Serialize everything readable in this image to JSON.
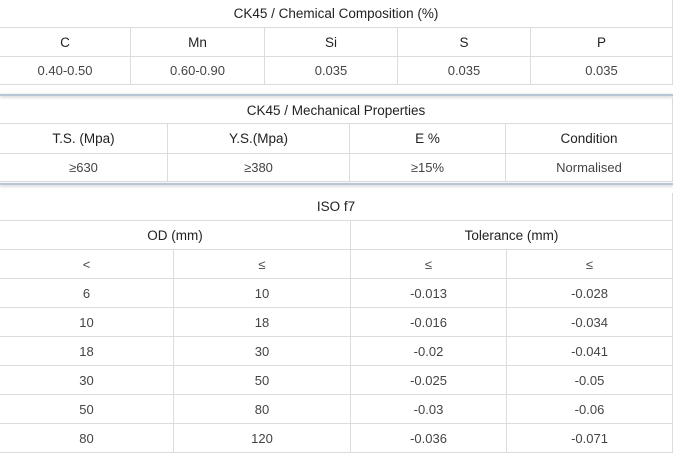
{
  "chemical": {
    "title": "CK45 / Chemical Composition (%)",
    "headers": [
      "C",
      "Mn",
      "Si",
      "S",
      "P"
    ],
    "values": [
      "0.40-0.50",
      "0.60-0.90",
      "0.035",
      "0.035",
      "0.035"
    ]
  },
  "mechanical": {
    "title": "CK45 / Mechanical Properties",
    "headers": [
      "T.S. (Mpa)",
      "Y.S.(Mpa)",
      "E %",
      "Condition"
    ],
    "values": [
      "≥630",
      "≥380",
      "≥15%",
      "Normalised"
    ]
  },
  "tolerance": {
    "title": "ISO f7",
    "groups": [
      "OD (mm)",
      "Tolerance (mm)"
    ],
    "symbols": [
      "<",
      "≤",
      "≤",
      "≤"
    ],
    "rows": [
      [
        "6",
        "10",
        "-0.013",
        "-0.028"
      ],
      [
        "10",
        "18",
        "-0.016",
        "-0.034"
      ],
      [
        "18",
        "30",
        "-0.02",
        "-0.041"
      ],
      [
        "30",
        "50",
        "-0.025",
        "-0.05"
      ],
      [
        "50",
        "80",
        "-0.03",
        "-0.06"
      ],
      [
        "80",
        "120",
        "-0.036",
        "-0.071"
      ]
    ]
  }
}
